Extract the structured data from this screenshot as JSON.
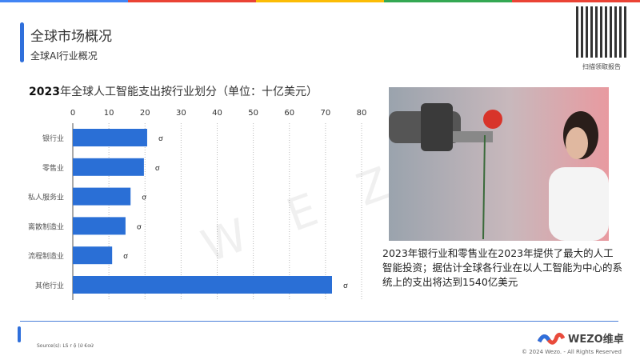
{
  "header": {
    "title": "全球市场概况",
    "subtitle": "全球AI行业概况",
    "qr_label": "扫描领取报告"
  },
  "top_strip_colors": [
    "#4285f4",
    "#ea4335",
    "#fbbc05",
    "#34a853",
    "#ea4335"
  ],
  "chart_data": {
    "type": "bar",
    "orientation": "horizontal",
    "title_year": "2023",
    "title": "年全球人工智能支出按行业划分（单位：十亿美元）",
    "categories": [
      "银行业",
      "零售业",
      "私人服务业",
      "离散制造业",
      "流程制造业",
      "其他行业"
    ],
    "values": [
      20.6,
      19.7,
      16.0,
      14.6,
      10.9,
      71.8
    ],
    "data_labels": [
      "ơ",
      "ơ",
      "ơ",
      "ơ",
      "ơ",
      "ơ"
    ],
    "xlim": [
      0,
      80
    ],
    "xticks": [
      0,
      10,
      20,
      30,
      40,
      50,
      60,
      70,
      80
    ],
    "grid": true,
    "bar_color": "#2a6fd6"
  },
  "caption": "2023年银行业和零售业在2023年提供了最大的人工智能投资；据估计全球各行业在以人工智能为中心的系统上的支出将达到1540亿美元",
  "watermark": "W E Z O维",
  "footer": {
    "source": "Source(s):  LS r ộ (ứ €oử",
    "logo": "WEZO维卓",
    "copyright": "© 2024 Wezo. - All Rights Reserved"
  }
}
